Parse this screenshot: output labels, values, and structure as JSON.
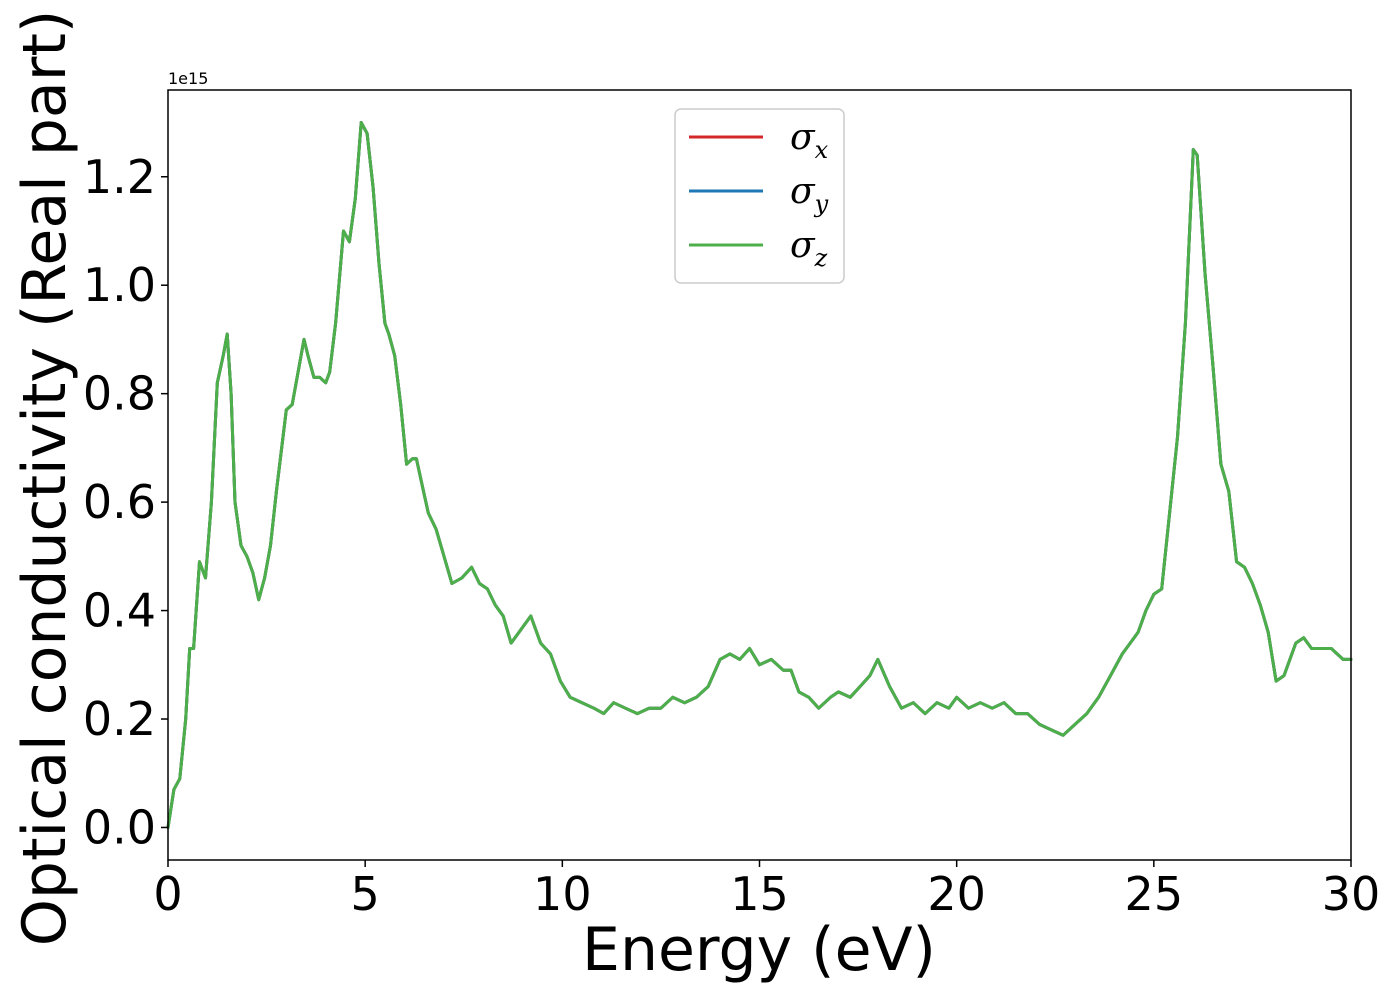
{
  "chart_data": {
    "type": "line",
    "title": "",
    "xlabel": "Energy (eV)",
    "ylabel": "Optical conductivity (Real part)",
    "y_offset_label": "1e15",
    "xlim": [
      0,
      30
    ],
    "ylim": [
      -0.06,
      1.36
    ],
    "xticks": [
      0,
      5,
      10,
      15,
      20,
      25,
      30
    ],
    "yticks": [
      0.0,
      0.2,
      0.4,
      0.6,
      0.8,
      1.0,
      1.2
    ],
    "xtick_labels": [
      "0",
      "5",
      "10",
      "15",
      "20",
      "25",
      "30"
    ],
    "ytick_labels": [
      "0.0",
      "0.2",
      "0.4",
      "0.6",
      "0.8",
      "1.0",
      "1.2"
    ],
    "grid": false,
    "legend_position": "upper-center",
    "legend": [
      {
        "symbol": "σ",
        "sub": "x",
        "color": "#d62728"
      },
      {
        "symbol": "σ",
        "sub": "y",
        "color": "#1f77b4"
      },
      {
        "symbol": "σ",
        "sub": "z",
        "color": "#4daf4a"
      }
    ],
    "x": [
      0,
      0.15,
      0.3,
      0.45,
      0.55,
      0.65,
      0.8,
      0.95,
      1.1,
      1.25,
      1.4,
      1.5,
      1.6,
      1.7,
      1.85,
      2.0,
      2.15,
      2.3,
      2.45,
      2.6,
      2.75,
      3.0,
      3.15,
      3.3,
      3.45,
      3.55,
      3.7,
      3.85,
      4.0,
      4.1,
      4.25,
      4.45,
      4.6,
      4.75,
      4.9,
      5.05,
      5.2,
      5.35,
      5.5,
      5.6,
      5.75,
      5.9,
      6.05,
      6.2,
      6.3,
      6.45,
      6.6,
      6.8,
      7.0,
      7.2,
      7.45,
      7.7,
      7.9,
      8.1,
      8.3,
      8.5,
      8.7,
      8.9,
      9.2,
      9.45,
      9.7,
      9.95,
      10.2,
      10.5,
      10.8,
      11.05,
      11.3,
      11.6,
      11.9,
      12.2,
      12.5,
      12.8,
      13.1,
      13.4,
      13.7,
      14.0,
      14.25,
      14.5,
      14.75,
      15.0,
      15.3,
      15.6,
      15.8,
      16.0,
      16.25,
      16.5,
      16.8,
      17.0,
      17.3,
      17.55,
      17.8,
      18.0,
      18.3,
      18.6,
      18.9,
      19.2,
      19.5,
      19.8,
      20.0,
      20.3,
      20.6,
      20.9,
      21.2,
      21.5,
      21.8,
      22.1,
      22.4,
      22.7,
      23.0,
      23.3,
      23.6,
      23.9,
      24.2,
      24.4,
      24.6,
      24.8,
      25.0,
      25.2,
      25.4,
      25.6,
      25.8,
      26.0,
      26.1,
      26.3,
      26.5,
      26.7,
      26.9,
      27.1,
      27.3,
      27.5,
      27.7,
      27.9,
      28.1,
      28.3,
      28.6,
      28.8,
      29.0,
      29.2,
      29.5,
      29.8,
      30.0
    ],
    "series": [
      {
        "legend_index": 0,
        "values": [
          0.0,
          0.07,
          0.09,
          0.2,
          0.33,
          0.33,
          0.49,
          0.46,
          0.6,
          0.82,
          0.87,
          0.91,
          0.8,
          0.6,
          0.52,
          0.5,
          0.47,
          0.42,
          0.46,
          0.52,
          0.62,
          0.77,
          0.78,
          0.84,
          0.9,
          0.87,
          0.83,
          0.83,
          0.82,
          0.84,
          0.93,
          1.1,
          1.08,
          1.16,
          1.3,
          1.28,
          1.18,
          1.04,
          0.93,
          0.91,
          0.87,
          0.78,
          0.67,
          0.68,
          0.68,
          0.63,
          0.58,
          0.55,
          0.5,
          0.45,
          0.46,
          0.48,
          0.45,
          0.44,
          0.41,
          0.39,
          0.34,
          0.36,
          0.39,
          0.34,
          0.32,
          0.27,
          0.24,
          0.23,
          0.22,
          0.21,
          0.23,
          0.22,
          0.21,
          0.22,
          0.22,
          0.24,
          0.23,
          0.24,
          0.26,
          0.31,
          0.32,
          0.31,
          0.33,
          0.3,
          0.31,
          0.29,
          0.29,
          0.25,
          0.24,
          0.22,
          0.24,
          0.25,
          0.24,
          0.26,
          0.28,
          0.31,
          0.26,
          0.22,
          0.23,
          0.21,
          0.23,
          0.22,
          0.24,
          0.22,
          0.23,
          0.22,
          0.23,
          0.21,
          0.21,
          0.19,
          0.18,
          0.17,
          0.19,
          0.21,
          0.24,
          0.28,
          0.32,
          0.34,
          0.36,
          0.4,
          0.43,
          0.44,
          0.58,
          0.72,
          0.93,
          1.25,
          1.24,
          1.02,
          0.85,
          0.67,
          0.62,
          0.49,
          0.48,
          0.45,
          0.41,
          0.36,
          0.27,
          0.28,
          0.34,
          0.35,
          0.33,
          0.33,
          0.33,
          0.31,
          0.31
        ]
      },
      {
        "legend_index": 1,
        "values": [
          0.0,
          0.07,
          0.09,
          0.2,
          0.33,
          0.33,
          0.49,
          0.46,
          0.6,
          0.82,
          0.87,
          0.91,
          0.8,
          0.6,
          0.52,
          0.5,
          0.47,
          0.42,
          0.46,
          0.52,
          0.62,
          0.77,
          0.78,
          0.84,
          0.9,
          0.87,
          0.83,
          0.83,
          0.82,
          0.84,
          0.93,
          1.1,
          1.08,
          1.16,
          1.3,
          1.28,
          1.18,
          1.04,
          0.93,
          0.91,
          0.87,
          0.78,
          0.67,
          0.68,
          0.68,
          0.63,
          0.58,
          0.55,
          0.5,
          0.45,
          0.46,
          0.48,
          0.45,
          0.44,
          0.41,
          0.39,
          0.34,
          0.36,
          0.39,
          0.34,
          0.32,
          0.27,
          0.24,
          0.23,
          0.22,
          0.21,
          0.23,
          0.22,
          0.21,
          0.22,
          0.22,
          0.24,
          0.23,
          0.24,
          0.26,
          0.31,
          0.32,
          0.31,
          0.33,
          0.3,
          0.31,
          0.29,
          0.29,
          0.25,
          0.24,
          0.22,
          0.24,
          0.25,
          0.24,
          0.26,
          0.28,
          0.31,
          0.26,
          0.22,
          0.23,
          0.21,
          0.23,
          0.22,
          0.24,
          0.22,
          0.23,
          0.22,
          0.23,
          0.21,
          0.21,
          0.19,
          0.18,
          0.17,
          0.19,
          0.21,
          0.24,
          0.28,
          0.32,
          0.34,
          0.36,
          0.4,
          0.43,
          0.44,
          0.58,
          0.72,
          0.93,
          1.25,
          1.24,
          1.02,
          0.85,
          0.67,
          0.62,
          0.49,
          0.48,
          0.45,
          0.41,
          0.36,
          0.27,
          0.28,
          0.34,
          0.35,
          0.33,
          0.33,
          0.33,
          0.31,
          0.31
        ]
      },
      {
        "legend_index": 2,
        "values": [
          0.0,
          0.07,
          0.09,
          0.2,
          0.33,
          0.33,
          0.49,
          0.46,
          0.6,
          0.82,
          0.87,
          0.91,
          0.8,
          0.6,
          0.52,
          0.5,
          0.47,
          0.42,
          0.46,
          0.52,
          0.62,
          0.77,
          0.78,
          0.84,
          0.9,
          0.87,
          0.83,
          0.83,
          0.82,
          0.84,
          0.93,
          1.1,
          1.08,
          1.16,
          1.3,
          1.28,
          1.18,
          1.04,
          0.93,
          0.91,
          0.87,
          0.78,
          0.67,
          0.68,
          0.68,
          0.63,
          0.58,
          0.55,
          0.5,
          0.45,
          0.46,
          0.48,
          0.45,
          0.44,
          0.41,
          0.39,
          0.34,
          0.36,
          0.39,
          0.34,
          0.32,
          0.27,
          0.24,
          0.23,
          0.22,
          0.21,
          0.23,
          0.22,
          0.21,
          0.22,
          0.22,
          0.24,
          0.23,
          0.24,
          0.26,
          0.31,
          0.32,
          0.31,
          0.33,
          0.3,
          0.31,
          0.29,
          0.29,
          0.25,
          0.24,
          0.22,
          0.24,
          0.25,
          0.24,
          0.26,
          0.28,
          0.31,
          0.26,
          0.22,
          0.23,
          0.21,
          0.23,
          0.22,
          0.24,
          0.22,
          0.23,
          0.22,
          0.23,
          0.21,
          0.21,
          0.19,
          0.18,
          0.17,
          0.19,
          0.21,
          0.24,
          0.28,
          0.32,
          0.34,
          0.36,
          0.4,
          0.43,
          0.44,
          0.58,
          0.72,
          0.93,
          1.25,
          1.24,
          1.02,
          0.85,
          0.67,
          0.62,
          0.49,
          0.48,
          0.45,
          0.41,
          0.36,
          0.27,
          0.28,
          0.34,
          0.35,
          0.33,
          0.33,
          0.33,
          0.31,
          0.31
        ]
      }
    ]
  }
}
